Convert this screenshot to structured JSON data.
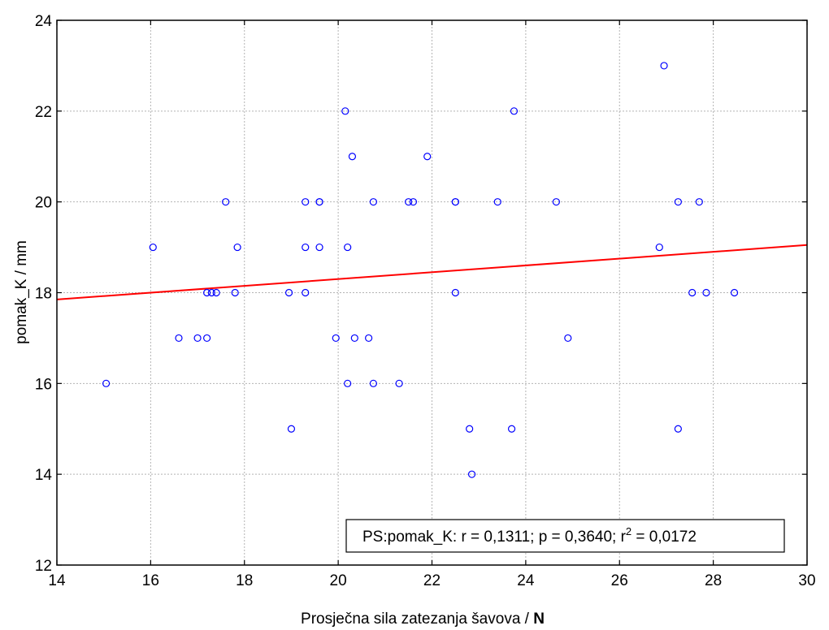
{
  "chart_data": {
    "type": "scatter",
    "title": "",
    "xlabel": "Prosječna sila zatezanja šavova",
    "xunit": "N",
    "ylabel": "pomak_K / mm",
    "xlim": [
      14,
      30
    ],
    "ylim": [
      12,
      24
    ],
    "xticks": [
      14,
      16,
      18,
      20,
      22,
      24,
      26,
      28,
      30
    ],
    "yticks": [
      12,
      14,
      16,
      18,
      20,
      22,
      24
    ],
    "grid": true,
    "series": [
      {
        "marker_color": "#0000ff",
        "points": [
          [
            15.05,
            16
          ],
          [
            16.05,
            19
          ],
          [
            16.6,
            17
          ],
          [
            17.0,
            17
          ],
          [
            17.2,
            17
          ],
          [
            17.2,
            18
          ],
          [
            17.3,
            18
          ],
          [
            17.4,
            18
          ],
          [
            17.6,
            20
          ],
          [
            17.8,
            18
          ],
          [
            17.85,
            19
          ],
          [
            18.95,
            18
          ],
          [
            19.0,
            15
          ],
          [
            19.3,
            20
          ],
          [
            19.3,
            19
          ],
          [
            19.3,
            18
          ],
          [
            19.6,
            20
          ],
          [
            19.6,
            20
          ],
          [
            19.6,
            19
          ],
          [
            19.95,
            17
          ],
          [
            20.15,
            22
          ],
          [
            20.2,
            19
          ],
          [
            20.2,
            16
          ],
          [
            20.3,
            21
          ],
          [
            20.35,
            17
          ],
          [
            20.65,
            17
          ],
          [
            20.75,
            20
          ],
          [
            20.75,
            16
          ],
          [
            21.3,
            16
          ],
          [
            21.5,
            20
          ],
          [
            21.6,
            20
          ],
          [
            21.9,
            21
          ],
          [
            22.5,
            20
          ],
          [
            22.5,
            20
          ],
          [
            22.5,
            18
          ],
          [
            22.8,
            15
          ],
          [
            22.85,
            14
          ],
          [
            23.4,
            20
          ],
          [
            23.7,
            15
          ],
          [
            23.75,
            22
          ],
          [
            24.65,
            20
          ],
          [
            24.9,
            17
          ],
          [
            26.85,
            19
          ],
          [
            26.95,
            23
          ],
          [
            27.25,
            20
          ],
          [
            27.25,
            15
          ],
          [
            27.55,
            18
          ],
          [
            27.7,
            20
          ],
          [
            27.85,
            18
          ],
          [
            28.45,
            18
          ]
        ]
      }
    ],
    "fit_line": {
      "color": "#ff0000",
      "x": [
        14,
        30
      ],
      "y": [
        17.85,
        19.05
      ]
    }
  },
  "annotation": {
    "text": "PS:pomak_K:   r = 0,1311; p = 0,3640;    r",
    "sup": "2",
    "after": " = 0,0172"
  }
}
